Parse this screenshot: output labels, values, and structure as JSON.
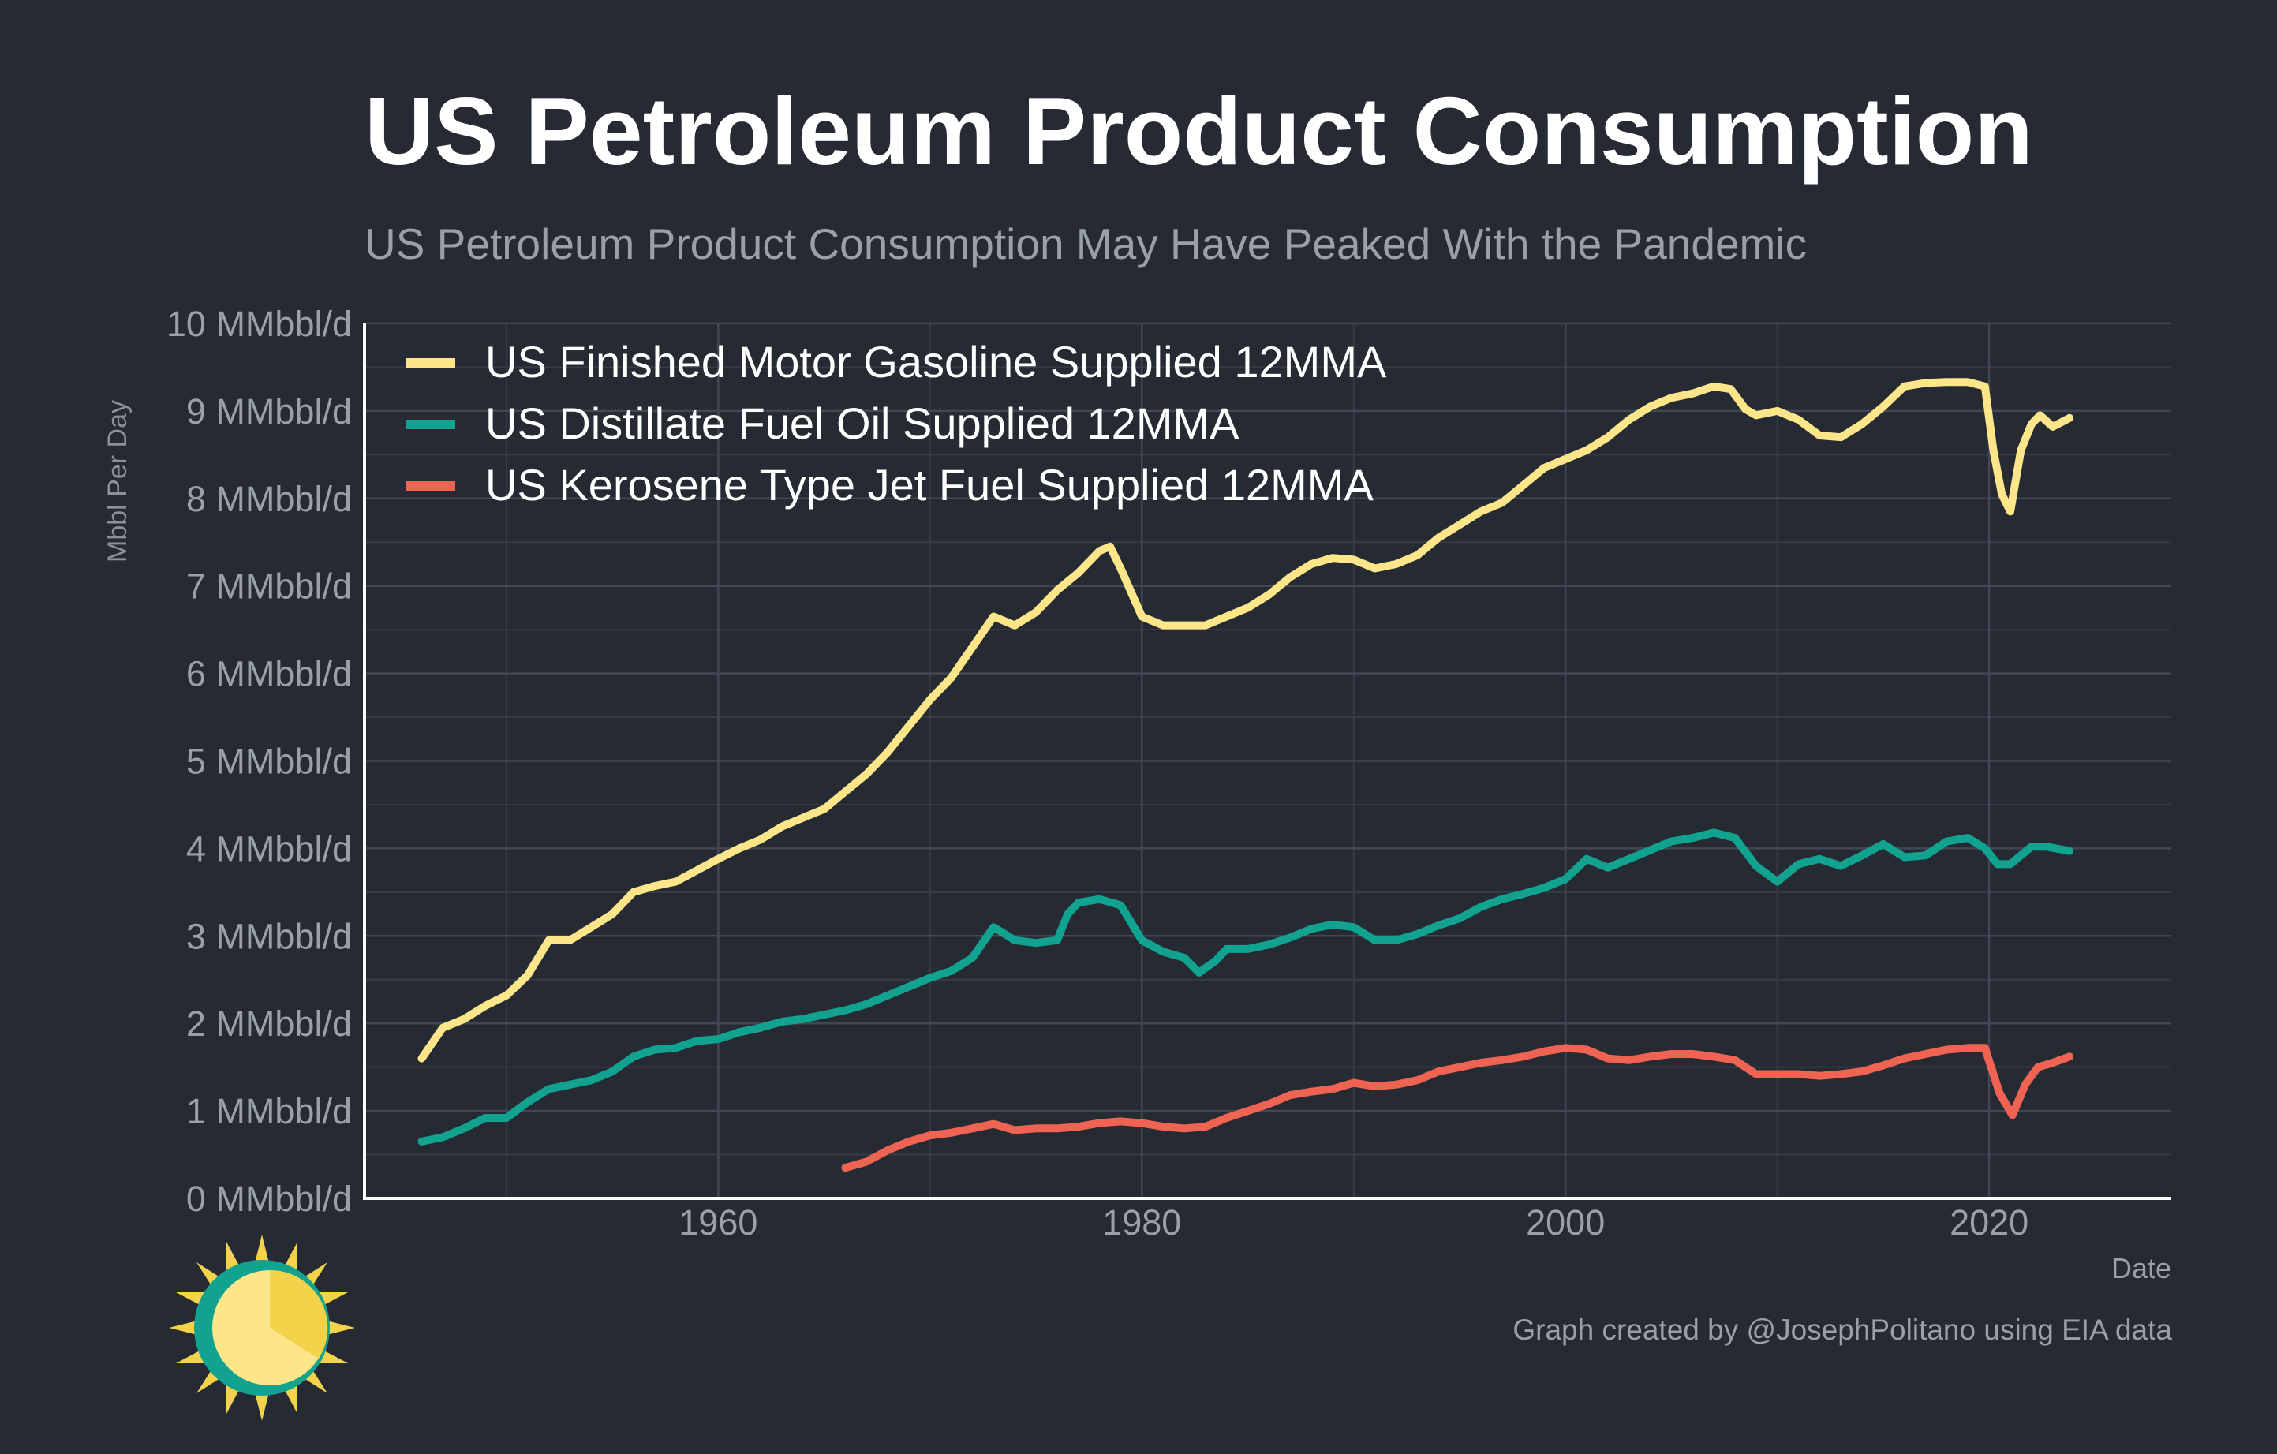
{
  "title": "US Petroleum Product Consumption",
  "subtitle": "US Petroleum Product Consumption May Have Peaked With the Pandemic",
  "credit": "Graph created by @JosephPolitano using EIA data",
  "logo": "sun-logo-icon",
  "chart_data": {
    "type": "line",
    "xlabel": "Date",
    "ylabel": "Mbbl Per Day",
    "xlim": [
      1943.3,
      2028.6
    ],
    "ylim": [
      0,
      10
    ],
    "x_ticks": [
      "1960",
      "1980",
      "2000",
      "2020"
    ],
    "x_tick_values": [
      1960,
      1980,
      2000,
      2020
    ],
    "y_ticks": [
      "0 MMbbl/d",
      "1 MMbbl/d",
      "2 MMbbl/d",
      "3 MMbbl/d",
      "4 MMbbl/d",
      "5 MMbbl/d",
      "6 MMbbl/d",
      "7 MMbbl/d",
      "8 MMbbl/d",
      "9 MMbbl/d",
      "10 MMbbl/d"
    ],
    "y_tick_values": [
      0,
      1,
      2,
      3,
      4,
      5,
      6,
      7,
      8,
      9,
      10
    ],
    "grid": true,
    "legend_position": "top-left",
    "series": [
      {
        "name": "US Finished Motor Gasoline Supplied 12MMA",
        "color": "#fde68a",
        "points": [
          [
            1946,
            1.6
          ],
          [
            1947,
            1.95
          ],
          [
            1948,
            2.05
          ],
          [
            1949,
            2.2
          ],
          [
            1950,
            2.32
          ],
          [
            1951,
            2.55
          ],
          [
            1952,
            2.95
          ],
          [
            1953,
            2.95
          ],
          [
            1954,
            3.1
          ],
          [
            1955,
            3.25
          ],
          [
            1956,
            3.5
          ],
          [
            1957,
            3.57
          ],
          [
            1958,
            3.62
          ],
          [
            1959,
            3.75
          ],
          [
            1960,
            3.88
          ],
          [
            1961,
            4.0
          ],
          [
            1962,
            4.1
          ],
          [
            1963,
            4.25
          ],
          [
            1964,
            4.35
          ],
          [
            1965,
            4.45
          ],
          [
            1966,
            4.65
          ],
          [
            1967,
            4.85
          ],
          [
            1968,
            5.1
          ],
          [
            1969,
            5.4
          ],
          [
            1970,
            5.7
          ],
          [
            1971,
            5.95
          ],
          [
            1972,
            6.3
          ],
          [
            1973,
            6.65
          ],
          [
            1974,
            6.55
          ],
          [
            1975,
            6.7
          ],
          [
            1976,
            6.95
          ],
          [
            1977,
            7.15
          ],
          [
            1978,
            7.4
          ],
          [
            1978.5,
            7.45
          ],
          [
            1979,
            7.2
          ],
          [
            1980,
            6.65
          ],
          [
            1981,
            6.55
          ],
          [
            1982,
            6.55
          ],
          [
            1983,
            6.55
          ],
          [
            1984,
            6.65
          ],
          [
            1985,
            6.75
          ],
          [
            1986,
            6.9
          ],
          [
            1987,
            7.1
          ],
          [
            1988,
            7.25
          ],
          [
            1989,
            7.32
          ],
          [
            1990,
            7.3
          ],
          [
            1991,
            7.2
          ],
          [
            1992,
            7.25
          ],
          [
            1993,
            7.35
          ],
          [
            1994,
            7.55
          ],
          [
            1995,
            7.7
          ],
          [
            1996,
            7.85
          ],
          [
            1997,
            7.95
          ],
          [
            1998,
            8.15
          ],
          [
            1999,
            8.35
          ],
          [
            2000,
            8.45
          ],
          [
            2001,
            8.55
          ],
          [
            2002,
            8.7
          ],
          [
            2003,
            8.9
          ],
          [
            2004,
            9.05
          ],
          [
            2005,
            9.15
          ],
          [
            2006,
            9.2
          ],
          [
            2007,
            9.28
          ],
          [
            2007.8,
            9.25
          ],
          [
            2008.5,
            9.02
          ],
          [
            2009,
            8.95
          ],
          [
            2010,
            9.0
          ],
          [
            2011,
            8.9
          ],
          [
            2012,
            8.72
          ],
          [
            2013,
            8.7
          ],
          [
            2014,
            8.85
          ],
          [
            2015,
            9.05
          ],
          [
            2016,
            9.28
          ],
          [
            2017,
            9.32
          ],
          [
            2018,
            9.33
          ],
          [
            2019,
            9.33
          ],
          [
            2019.8,
            9.28
          ],
          [
            2020.2,
            8.55
          ],
          [
            2020.6,
            8.05
          ],
          [
            2021.0,
            7.85
          ],
          [
            2021.5,
            8.55
          ],
          [
            2022,
            8.85
          ],
          [
            2022.4,
            8.95
          ],
          [
            2023,
            8.82
          ],
          [
            2023.8,
            8.92
          ]
        ]
      },
      {
        "name": "US Distillate Fuel Oil Supplied 12MMA",
        "color": "#12a290",
        "points": [
          [
            1946,
            0.65
          ],
          [
            1947,
            0.7
          ],
          [
            1948,
            0.8
          ],
          [
            1949,
            0.92
          ],
          [
            1950,
            0.92
          ],
          [
            1951,
            1.1
          ],
          [
            1952,
            1.25
          ],
          [
            1953,
            1.3
          ],
          [
            1954,
            1.35
          ],
          [
            1955,
            1.45
          ],
          [
            1956,
            1.62
          ],
          [
            1957,
            1.7
          ],
          [
            1958,
            1.72
          ],
          [
            1959,
            1.8
          ],
          [
            1960,
            1.82
          ],
          [
            1961,
            1.9
          ],
          [
            1962,
            1.95
          ],
          [
            1963,
            2.02
          ],
          [
            1964,
            2.05
          ],
          [
            1965,
            2.1
          ],
          [
            1966,
            2.15
          ],
          [
            1967,
            2.22
          ],
          [
            1968,
            2.32
          ],
          [
            1969,
            2.42
          ],
          [
            1970,
            2.52
          ],
          [
            1971,
            2.6
          ],
          [
            1972,
            2.75
          ],
          [
            1973,
            3.1
          ],
          [
            1974,
            2.95
          ],
          [
            1975,
            2.92
          ],
          [
            1976,
            2.95
          ],
          [
            1976.5,
            3.25
          ],
          [
            1977,
            3.38
          ],
          [
            1978,
            3.42
          ],
          [
            1979,
            3.35
          ],
          [
            1980,
            2.95
          ],
          [
            1981,
            2.82
          ],
          [
            1982,
            2.75
          ],
          [
            1982.7,
            2.58
          ],
          [
            1983.5,
            2.72
          ],
          [
            1984,
            2.85
          ],
          [
            1985,
            2.85
          ],
          [
            1986,
            2.9
          ],
          [
            1987,
            2.98
          ],
          [
            1988,
            3.08
          ],
          [
            1989,
            3.13
          ],
          [
            1990,
            3.1
          ],
          [
            1991,
            2.95
          ],
          [
            1992,
            2.95
          ],
          [
            1993,
            3.02
          ],
          [
            1994,
            3.12
          ],
          [
            1995,
            3.2
          ],
          [
            1996,
            3.33
          ],
          [
            1997,
            3.42
          ],
          [
            1998,
            3.48
          ],
          [
            1999,
            3.55
          ],
          [
            2000,
            3.65
          ],
          [
            2001,
            3.88
          ],
          [
            2002,
            3.78
          ],
          [
            2003,
            3.88
          ],
          [
            2004,
            3.98
          ],
          [
            2005,
            4.08
          ],
          [
            2006,
            4.12
          ],
          [
            2007,
            4.18
          ],
          [
            2008,
            4.12
          ],
          [
            2009,
            3.8
          ],
          [
            2010,
            3.62
          ],
          [
            2011,
            3.82
          ],
          [
            2012,
            3.88
          ],
          [
            2013,
            3.8
          ],
          [
            2014,
            3.92
          ],
          [
            2015,
            4.05
          ],
          [
            2016,
            3.9
          ],
          [
            2017,
            3.92
          ],
          [
            2018,
            4.08
          ],
          [
            2019,
            4.12
          ],
          [
            2019.8,
            4.0
          ],
          [
            2020.4,
            3.82
          ],
          [
            2021,
            3.82
          ],
          [
            2022,
            4.02
          ],
          [
            2022.7,
            4.02
          ],
          [
            2023.8,
            3.97
          ]
        ]
      },
      {
        "name": "US Kerosene Type Jet Fuel Supplied 12MMA",
        "color": "#ee6352",
        "points": [
          [
            1966,
            0.35
          ],
          [
            1967,
            0.42
          ],
          [
            1968,
            0.55
          ],
          [
            1969,
            0.65
          ],
          [
            1970,
            0.72
          ],
          [
            1971,
            0.75
          ],
          [
            1972,
            0.8
          ],
          [
            1973,
            0.85
          ],
          [
            1974,
            0.78
          ],
          [
            1975,
            0.8
          ],
          [
            1976,
            0.8
          ],
          [
            1977,
            0.82
          ],
          [
            1978,
            0.86
          ],
          [
            1979,
            0.88
          ],
          [
            1980,
            0.86
          ],
          [
            1981,
            0.82
          ],
          [
            1982,
            0.8
          ],
          [
            1983,
            0.82
          ],
          [
            1984,
            0.92
          ],
          [
            1985,
            1.0
          ],
          [
            1986,
            1.08
          ],
          [
            1987,
            1.18
          ],
          [
            1988,
            1.22
          ],
          [
            1989,
            1.25
          ],
          [
            1990,
            1.32
          ],
          [
            1991,
            1.28
          ],
          [
            1992,
            1.3
          ],
          [
            1993,
            1.35
          ],
          [
            1994,
            1.45
          ],
          [
            1995,
            1.5
          ],
          [
            1996,
            1.55
          ],
          [
            1997,
            1.58
          ],
          [
            1998,
            1.62
          ],
          [
            1999,
            1.68
          ],
          [
            2000,
            1.72
          ],
          [
            2001,
            1.7
          ],
          [
            2002,
            1.6
          ],
          [
            2003,
            1.58
          ],
          [
            2004,
            1.62
          ],
          [
            2005,
            1.65
          ],
          [
            2006,
            1.65
          ],
          [
            2007,
            1.62
          ],
          [
            2008,
            1.58
          ],
          [
            2009,
            1.42
          ],
          [
            2010,
            1.42
          ],
          [
            2011,
            1.42
          ],
          [
            2012,
            1.4
          ],
          [
            2013,
            1.42
          ],
          [
            2014,
            1.45
          ],
          [
            2015,
            1.52
          ],
          [
            2016,
            1.6
          ],
          [
            2017,
            1.65
          ],
          [
            2018,
            1.7
          ],
          [
            2019,
            1.72
          ],
          [
            2019.8,
            1.72
          ],
          [
            2020.5,
            1.2
          ],
          [
            2021.1,
            0.95
          ],
          [
            2021.7,
            1.3
          ],
          [
            2022.3,
            1.5
          ],
          [
            2023,
            1.55
          ],
          [
            2023.8,
            1.62
          ]
        ]
      }
    ]
  }
}
